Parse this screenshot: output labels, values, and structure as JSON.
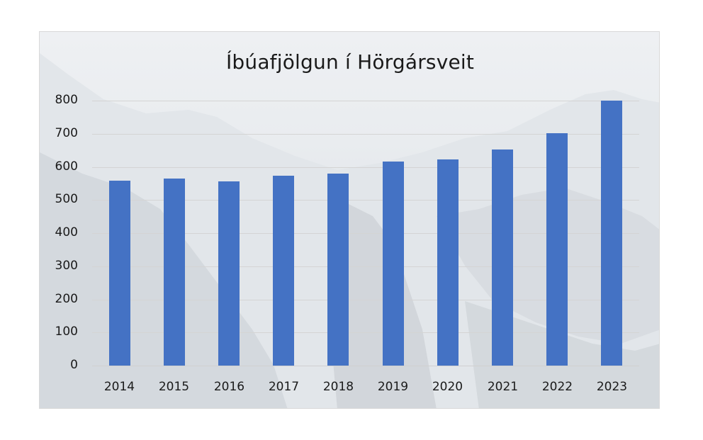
{
  "chart_data": {
    "type": "bar",
    "title": "Íbúafjölgun í Hörgársveit",
    "xlabel": "",
    "ylabel": "",
    "categories": [
      "2014",
      "2015",
      "2016",
      "2017",
      "2018",
      "2019",
      "2020",
      "2021",
      "2022",
      "2023"
    ],
    "values": [
      558,
      565,
      556,
      573,
      579,
      615,
      622,
      652,
      702,
      800
    ],
    "ylim": [
      0,
      800
    ],
    "yticks": [
      "0",
      "100",
      "200",
      "300",
      "400",
      "500",
      "600",
      "700",
      "800"
    ],
    "grid": true,
    "legend": "none",
    "bar_color": "#4472C4",
    "background": "photo of snowy mountains"
  }
}
